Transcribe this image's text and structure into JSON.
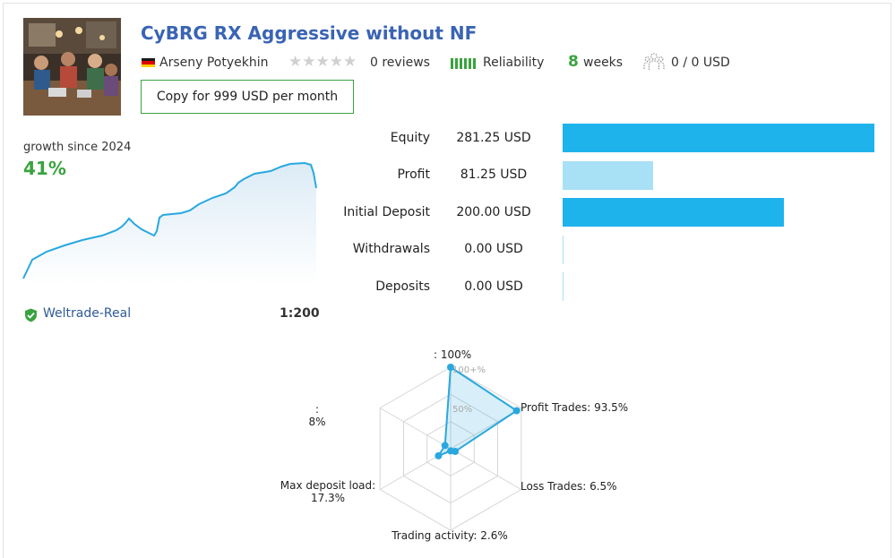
{
  "header": {
    "title": "CyBRG RX Aggressive without NF",
    "author": "Arseny Potyekhin",
    "author_flag": "germany-flag",
    "reviews": "0 reviews",
    "rating_stars": 0,
    "reliability_label": "Reliability",
    "weeks_value": "8",
    "weeks_label": "weeks",
    "subscribers": "0 / 0 USD",
    "copy_button": "Copy for 999 USD per month"
  },
  "growth": {
    "label": "growth since 2024",
    "value": "41%",
    "accent": "#3aa33f",
    "line_color": "#29a8df"
  },
  "account": {
    "broker": "Weltrade-Real",
    "leverage": "1:200"
  },
  "stats": [
    {
      "label": "Equity",
      "value": "281.25 USD",
      "amount": 281.25,
      "color": "#1fb3ec"
    },
    {
      "label": "Profit",
      "value": "81.25 USD",
      "amount": 81.25,
      "color": "#a8e0f6"
    },
    {
      "label": "Initial Deposit",
      "value": "200.00 USD",
      "amount": 200.0,
      "color": "#1fb3ec"
    },
    {
      "label": "Withdrawals",
      "value": "0.00 USD",
      "amount": 0,
      "color": "#a8e0f6"
    },
    {
      "label": "Deposits",
      "value": "0.00 USD",
      "amount": 0,
      "color": "#a8e0f6"
    }
  ],
  "radar": {
    "grid_labels": [
      "100+%",
      "50%"
    ],
    "axes": [
      {
        "name": "",
        "label_line1": ": 100%",
        "label_line2": "",
        "value": 100
      },
      {
        "name": "Profit Trades",
        "label_line1": "Profit Trades: 93.5%",
        "label_line2": "",
        "value": 93.5
      },
      {
        "name": "Loss Trades",
        "label_line1": "Loss Trades: 6.5%",
        "label_line2": "",
        "value": 6.5
      },
      {
        "name": "Trading activity",
        "label_line1": "Trading activity: 2.6%",
        "label_line2": "",
        "value": 2.6
      },
      {
        "name": "Max deposit load",
        "label_line1": "Max deposit load:",
        "label_line2": "17.3%",
        "value": 17.3
      },
      {
        "name": "",
        "label_line1": ":",
        "label_line2": "8%",
        "value": 8
      }
    ],
    "color": "#29a8df"
  }
}
